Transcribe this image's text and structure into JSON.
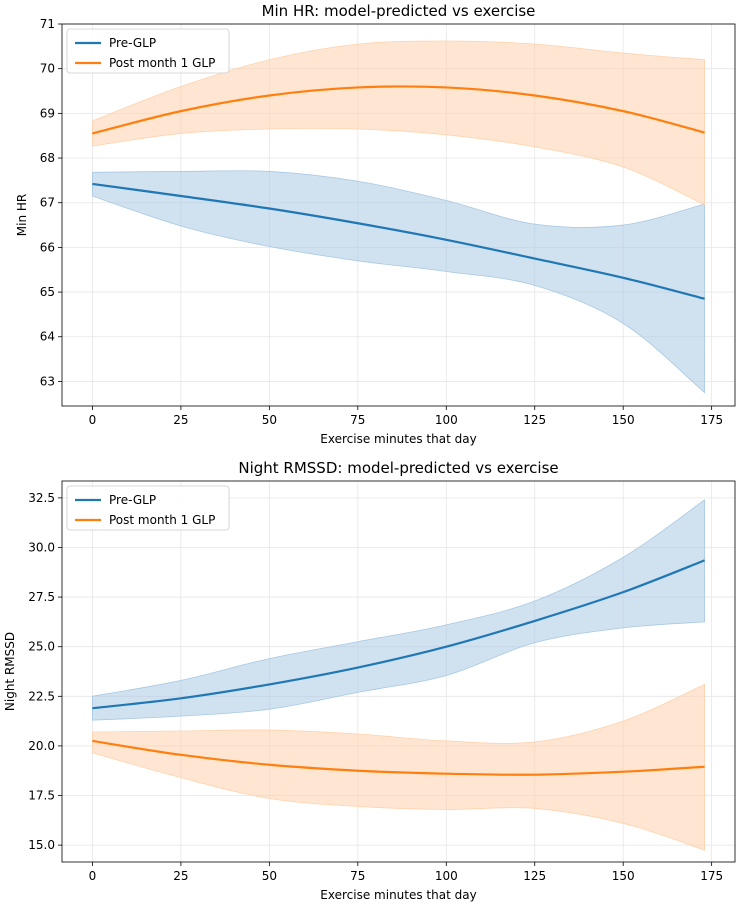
{
  "colors": {
    "pre": "#1f77b4",
    "post": "#ff7f0e",
    "pre_band": "#a9c9e3",
    "post_band": "#ffd2ad"
  },
  "chart_data": [
    {
      "type": "line",
      "title": "Min HR: model-predicted vs exercise",
      "xlabel": "Exercise minutes that day",
      "ylabel": "Min HR",
      "xlim": [
        -8.6,
        181.6
      ],
      "ylim": [
        62.45,
        71.0
      ],
      "xticks": [
        0,
        25,
        50,
        75,
        100,
        125,
        150,
        175
      ],
      "xtick_labels": [
        "0",
        "25",
        "50",
        "75",
        "100",
        "125",
        "150",
        "175"
      ],
      "yticks": [
        63,
        64,
        65,
        66,
        67,
        68,
        69,
        70,
        71
      ],
      "ytick_labels": [
        "63",
        "64",
        "65",
        "66",
        "67",
        "68",
        "69",
        "70",
        "71"
      ],
      "grid": true,
      "legend": "top-left",
      "series": [
        {
          "name": "Pre-GLP",
          "color_key": "pre",
          "x": [
            0,
            25,
            50,
            75,
            100,
            125,
            150,
            173
          ],
          "y": [
            67.42,
            67.15,
            66.87,
            66.54,
            66.17,
            65.75,
            65.32,
            64.85
          ],
          "lower": [
            67.15,
            66.48,
            66.02,
            65.7,
            65.46,
            65.15,
            64.3,
            62.75
          ],
          "upper": [
            67.68,
            67.7,
            67.7,
            67.48,
            67.05,
            66.52,
            66.5,
            66.97
          ]
        },
        {
          "name": "Post month 1 GLP",
          "color_key": "post",
          "x": [
            0,
            25,
            50,
            75,
            100,
            125,
            150,
            173
          ],
          "y": [
            68.55,
            69.05,
            69.4,
            69.58,
            69.58,
            69.4,
            69.05,
            68.57
          ],
          "lower": [
            68.27,
            68.55,
            68.65,
            68.65,
            68.52,
            68.25,
            67.8,
            66.95
          ],
          "upper": [
            68.83,
            69.6,
            70.2,
            70.55,
            70.62,
            70.55,
            70.35,
            70.2
          ]
        }
      ]
    },
    {
      "type": "line",
      "title": "Night RMSSD: model-predicted vs exercise",
      "xlabel": "Exercise minutes that day",
      "ylabel": "Night RMSSD",
      "xlim": [
        -8.6,
        181.6
      ],
      "ylim": [
        14.15,
        33.35
      ],
      "xticks": [
        0,
        25,
        50,
        75,
        100,
        125,
        150,
        175
      ],
      "xtick_labels": [
        "0",
        "25",
        "50",
        "75",
        "100",
        "125",
        "150",
        "175"
      ],
      "yticks": [
        15.0,
        17.5,
        20.0,
        22.5,
        25.0,
        27.5,
        30.0,
        32.5
      ],
      "ytick_labels": [
        "15.0",
        "17.5",
        "20.0",
        "22.5",
        "25.0",
        "27.5",
        "30.0",
        "32.5"
      ],
      "grid": true,
      "legend": "top-left",
      "series": [
        {
          "name": "Pre-GLP",
          "color_key": "pre",
          "x": [
            0,
            25,
            50,
            75,
            100,
            125,
            150,
            173
          ],
          "y": [
            21.9,
            22.4,
            23.1,
            23.95,
            25.0,
            26.3,
            27.75,
            29.35
          ],
          "lower": [
            21.3,
            21.5,
            21.85,
            22.7,
            23.55,
            25.2,
            25.95,
            26.25
          ],
          "upper": [
            22.5,
            23.3,
            24.4,
            25.25,
            26.1,
            27.3,
            29.5,
            32.4
          ]
        },
        {
          "name": "Post month 1 GLP",
          "color_key": "post",
          "x": [
            0,
            25,
            50,
            75,
            100,
            125,
            150,
            173
          ],
          "y": [
            20.25,
            19.55,
            19.05,
            18.75,
            18.6,
            18.55,
            18.7,
            18.95
          ],
          "lower": [
            19.65,
            18.4,
            17.35,
            16.95,
            16.8,
            16.85,
            16.1,
            14.75
          ],
          "upper": [
            20.7,
            20.75,
            20.8,
            20.6,
            20.25,
            20.2,
            21.25,
            23.1
          ]
        }
      ]
    }
  ]
}
